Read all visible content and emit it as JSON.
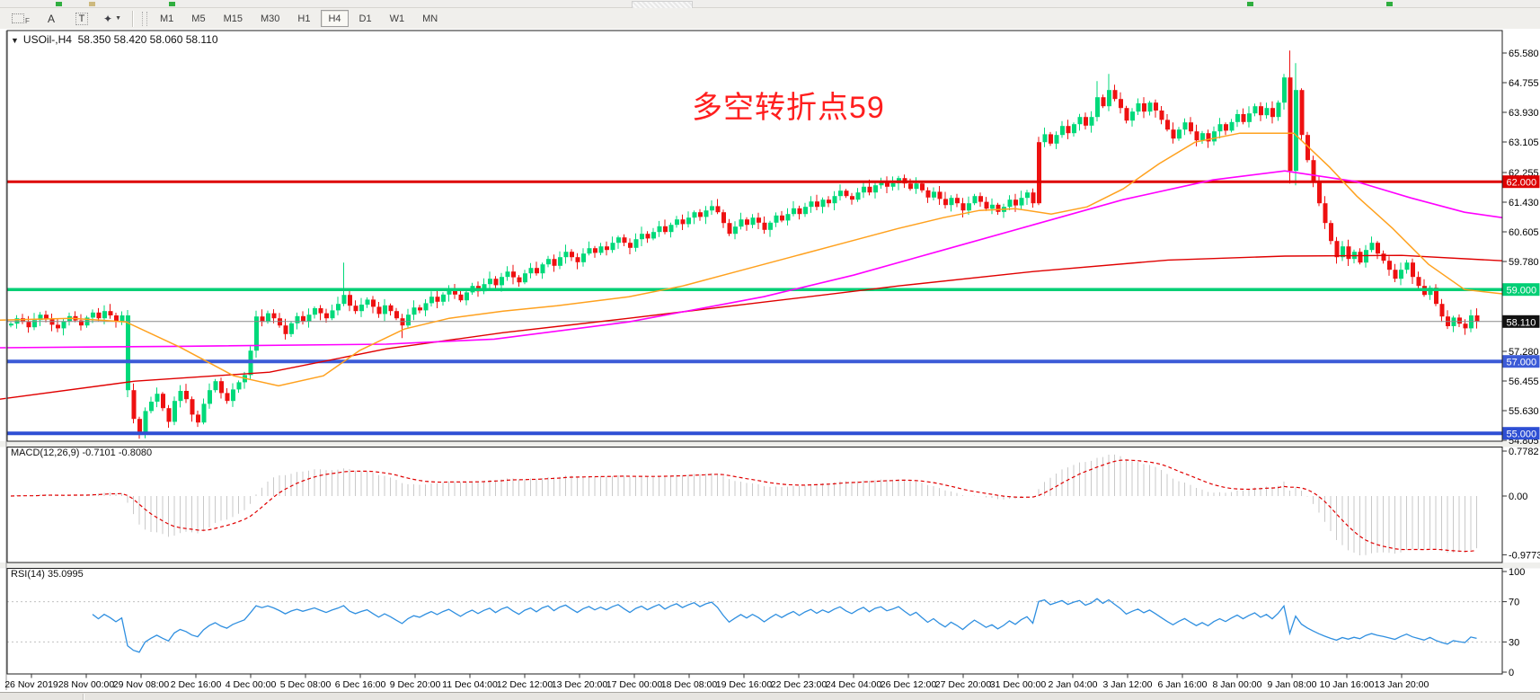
{
  "toolbar": {
    "tools": [
      {
        "name": "forex-grid-tool",
        "type": "fgrid",
        "label": "F"
      },
      {
        "name": "cursor-arrow-tool",
        "type": "text",
        "label": "A"
      },
      {
        "name": "text-label-tool",
        "type": "boxed",
        "label": "T"
      },
      {
        "name": "shapes-tool",
        "type": "shapes",
        "label": "✦"
      }
    ],
    "timeframes": [
      "M1",
      "M5",
      "M15",
      "M30",
      "H1",
      "H4",
      "D1",
      "W1",
      "MN"
    ],
    "active_timeframe": "H4"
  },
  "chart": {
    "title_symbol": "USOil-,H4",
    "title_ohlc": "58.350 58.420 58.060 58.110",
    "collapse_icon": "▼",
    "annotation_text": "多空转折点59",
    "annotation_color": "#ff1e1e",
    "current_price": "58.110"
  },
  "macd": {
    "label": "MACD(12,26,9)",
    "value_main": "-0.7101",
    "value_signal": "-0.8080",
    "axis_labels": [
      "0.7782",
      "0.00",
      "-0.9773"
    ]
  },
  "rsi": {
    "label": "RSI(14)",
    "value": "35.0995",
    "axis_labels": [
      "100",
      "70",
      "30",
      "0"
    ],
    "level_values": [
      70,
      30
    ]
  },
  "chart_data": {
    "type": "candlestick",
    "symbol": "USOil",
    "period": "H4",
    "price_axis_ticks": [
      65.58,
      64.755,
      63.93,
      63.105,
      62.255,
      61.43,
      60.605,
      59.78,
      57.28,
      56.455,
      55.63,
      54.805
    ],
    "price_boxes": [
      {
        "label": "62.000",
        "price": 62.0,
        "bg": "#dd0000"
      },
      {
        "label": "59.000",
        "price": 59.0,
        "bg": "#00cf75"
      },
      {
        "label": "58.110",
        "price": 58.11,
        "bg": "#111111"
      },
      {
        "label": "57.000",
        "price": 57.0,
        "bg": "#3c5bd7"
      },
      {
        "label": "55.000",
        "price": 55.0,
        "bg": "#2e4fd4"
      }
    ],
    "level_lines": [
      {
        "price": 62.0,
        "color": "#dd0000",
        "w": 3
      },
      {
        "price": 59.0,
        "color": "#00cf75",
        "w": 3.5
      },
      {
        "price": 57.0,
        "color": "#3c5bd7",
        "w": 4
      },
      {
        "price": 55.0,
        "color": "#2e4fd4",
        "w": 4
      },
      {
        "price": 58.11,
        "color": "#8a8a8a",
        "w": 1
      }
    ],
    "time_labels": [
      "26 Nov 2019",
      "28 Nov 00:00",
      "29 Nov 08:00",
      "2 Dec 16:00",
      "4 Dec 00:00",
      "5 Dec 08:00",
      "6 Dec 16:00",
      "9 Dec 20:00",
      "11 Dec 04:00",
      "12 Dec 12:00",
      "13 Dec 20:00",
      "17 Dec 00:00",
      "18 Dec 08:00",
      "19 Dec 16:00",
      "22 Dec 23:00",
      "24 Dec 04:00",
      "26 Dec 12:00",
      "27 Dec 20:00",
      "31 Dec 00:00",
      "2 Jan 04:00",
      "3 Jan 12:00",
      "6 Jan 16:00",
      "8 Jan 00:00",
      "9 Jan 08:00",
      "10 Jan 16:00",
      "13 Jan 20:00"
    ],
    "first_open": 58.0,
    "closes": [
      58.05,
      58.2,
      58.1,
      57.95,
      58.15,
      58.3,
      58.18,
      58.02,
      57.92,
      58.12,
      58.26,
      58.14,
      58.0,
      58.22,
      58.36,
      58.2,
      58.4,
      58.28,
      58.12,
      58.28,
      [
        56.2,
        null,
        null,
        "up"
      ],
      55.4,
      [
        55.0,
        null,
        54.85
      ],
      55.62,
      55.88,
      56.1,
      55.7,
      55.32,
      55.9,
      56.18,
      55.95,
      55.52,
      55.3,
      55.82,
      56.2,
      56.45,
      56.12,
      55.9,
      56.22,
      56.42,
      56.62,
      57.3,
      58.25,
      58.1,
      58.34,
      58.2,
      58.0,
      57.76,
      58.06,
      58.26,
      58.12,
      58.3,
      58.48,
      58.34,
      58.2,
      58.42,
      58.6,
      [
        58.85,
        59.75
      ],
      58.55,
      58.4,
      58.58,
      58.72,
      58.52,
      58.32,
      58.56,
      58.4,
      58.2,
      [
        58.0,
        null,
        57.65
      ],
      58.3,
      58.5,
      58.42,
      58.62,
      58.8,
      58.66,
      58.86,
      59.02,
      58.86,
      58.7,
      58.92,
      59.1,
      58.95,
      59.15,
      59.3,
      59.12,
      59.35,
      59.5,
      59.34,
      59.2,
      59.45,
      59.6,
      59.45,
      59.7,
      59.85,
      59.66,
      59.9,
      60.05,
      59.9,
      59.76,
      60.0,
      60.15,
      60.02,
      60.2,
      60.1,
      60.3,
      60.45,
      60.3,
      60.16,
      60.4,
      60.55,
      60.42,
      60.6,
      60.76,
      60.6,
      60.8,
      60.95,
      60.82,
      61.0,
      61.15,
      61.02,
      61.2,
      61.32,
      61.15,
      60.85,
      60.55,
      60.75,
      60.95,
      60.8,
      61.0,
      60.86,
      60.66,
      60.86,
      61.06,
      60.92,
      61.1,
      61.26,
      61.1,
      61.3,
      61.45,
      61.3,
      61.5,
      61.4,
      61.6,
      61.75,
      61.6,
      61.5,
      61.7,
      61.86,
      61.7,
      61.9,
      62.0,
      61.86,
      61.96,
      62.1,
      61.95,
      61.8,
      61.95,
      61.76,
      61.56,
      61.72,
      61.52,
      61.35,
      61.55,
      61.4,
      61.2,
      61.4,
      61.6,
      61.44,
      61.25,
      61.36,
      61.16,
      61.3,
      61.5,
      61.34,
      61.55,
      61.7,
      61.4,
      [
        63.1,
        null,
        null,
        "down"
      ],
      63.32,
      63.06,
      63.3,
      63.55,
      63.35,
      63.6,
      63.8,
      63.56,
      63.8,
      [
        64.35,
        64.8
      ],
      64.1,
      [
        64.55,
        65.0
      ],
      64.3,
      64.05,
      63.7,
      63.95,
      64.18,
      63.95,
      64.2,
      63.98,
      63.72,
      63.45,
      63.2,
      63.45,
      63.65,
      63.4,
      63.15,
      63.35,
      63.12,
      63.4,
      63.6,
      63.42,
      63.66,
      63.88,
      63.66,
      63.9,
      64.1,
      63.85,
      64.05,
      63.8,
      64.2,
      64.9,
      [
        62.3,
        65.65,
        61.95
      ],
      [
        64.55,
        65.3,
        61.9
      ],
      63.3,
      62.6,
      62.0,
      61.4,
      60.85,
      60.35,
      59.9,
      60.2,
      59.85,
      60.05,
      59.75,
      60.1,
      60.3,
      60.0,
      59.8,
      59.55,
      59.3,
      59.55,
      59.75,
      59.35,
      59.1,
      58.85,
      59.05,
      58.6,
      58.25,
      57.98,
      58.22,
      58.05,
      57.92,
      58.28,
      58.11
    ],
    "ma_red": [
      [
        0,
        55.95
      ],
      [
        150,
        56.45
      ],
      [
        300,
        56.7
      ],
      [
        430,
        57.35
      ],
      [
        560,
        57.8
      ],
      [
        700,
        58.2
      ],
      [
        850,
        58.65
      ],
      [
        1000,
        59.1
      ],
      [
        1150,
        59.5
      ],
      [
        1300,
        59.82
      ],
      [
        1430,
        59.93
      ],
      [
        1560,
        59.95
      ],
      [
        1672,
        59.8
      ]
    ],
    "ma_magenta": [
      [
        0,
        57.38
      ],
      [
        200,
        57.42
      ],
      [
        430,
        57.48
      ],
      [
        550,
        57.62
      ],
      [
        700,
        58.1
      ],
      [
        850,
        58.8
      ],
      [
        950,
        59.4
      ],
      [
        1050,
        60.1
      ],
      [
        1150,
        60.8
      ],
      [
        1250,
        61.5
      ],
      [
        1350,
        62.05
      ],
      [
        1430,
        62.3
      ],
      [
        1510,
        62.0
      ],
      [
        1570,
        61.55
      ],
      [
        1630,
        61.15
      ],
      [
        1672,
        61.0
      ]
    ],
    "ma_orange": [
      [
        0,
        58.15
      ],
      [
        80,
        58.2
      ],
      [
        140,
        58.1
      ],
      [
        200,
        57.4
      ],
      [
        260,
        56.6
      ],
      [
        310,
        56.32
      ],
      [
        360,
        56.6
      ],
      [
        400,
        57.3
      ],
      [
        450,
        57.9
      ],
      [
        500,
        58.2
      ],
      [
        560,
        58.4
      ],
      [
        620,
        58.55
      ],
      [
        700,
        58.8
      ],
      [
        760,
        59.1
      ],
      [
        820,
        59.5
      ],
      [
        880,
        59.9
      ],
      [
        940,
        60.3
      ],
      [
        1000,
        60.7
      ],
      [
        1050,
        61.0
      ],
      [
        1090,
        61.2
      ],
      [
        1130,
        61.25
      ],
      [
        1170,
        61.1
      ],
      [
        1210,
        61.3
      ],
      [
        1250,
        61.8
      ],
      [
        1290,
        62.5
      ],
      [
        1330,
        63.1
      ],
      [
        1380,
        63.35
      ],
      [
        1440,
        63.35
      ],
      [
        1480,
        62.4
      ],
      [
        1510,
        61.6
      ],
      [
        1550,
        60.7
      ],
      [
        1590,
        59.7
      ],
      [
        1630,
        59.0
      ],
      [
        1672,
        58.88
      ]
    ],
    "colors": {
      "up": "#00d97a",
      "down": "#ee1111",
      "ma_red": "#e00000",
      "ma_magenta": "#ff00ff",
      "ma_orange": "#ffa11e",
      "macd_hist": "#c9c9c9",
      "macd_signal": "#e00000",
      "rsi_line": "#2f8fe0",
      "rsi_levels": "#c0c0c0",
      "frame": "#1f1f1f"
    }
  }
}
